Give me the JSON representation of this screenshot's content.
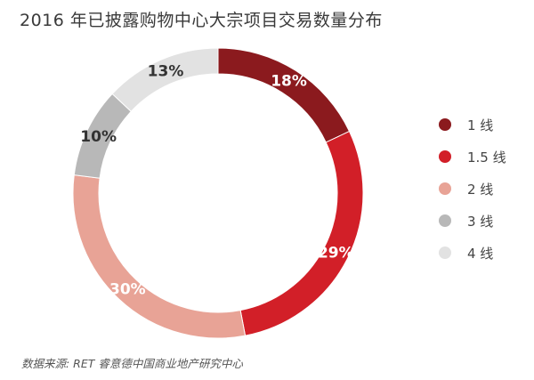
{
  "title": "2016 年已披露购物中心大宗项目交易数量分布",
  "source": "数据来源: RET 睿意德中国商业地产研究中心",
  "chart_data": {
    "type": "pie",
    "donut": true,
    "categories": [
      "1 线",
      "1.5 线",
      "2 线",
      "3 线",
      "4 线"
    ],
    "values": [
      18,
      29,
      30,
      10,
      13
    ],
    "value_labels": [
      "18%",
      "29%",
      "30%",
      "10%",
      "13%"
    ],
    "colors": [
      "#8b1a1e",
      "#d21f28",
      "#e8a396",
      "#b8b8b8",
      "#e2e2e2"
    ],
    "legend_position": "right"
  }
}
